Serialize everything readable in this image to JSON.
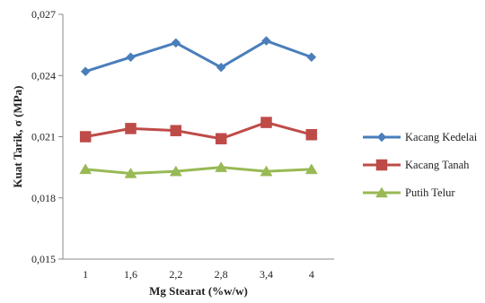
{
  "chart_data": {
    "type": "line",
    "xlabel": "Mg Stearat (%w/w)",
    "ylabel": "Kuat Tarik, σ (MPa)",
    "categories": [
      "1",
      "1,6",
      "2,2",
      "2,8",
      "3,4",
      "4"
    ],
    "ylim": [
      0.015,
      0.027
    ],
    "yticks": [
      "0,015",
      "0,018",
      "0,021",
      "0,024",
      "0,027"
    ],
    "ytick_values": [
      0.015,
      0.018,
      0.021,
      0.024,
      0.027
    ],
    "grid": false,
    "legend_position": "right",
    "series": [
      {
        "name": "Kacang Kedelai",
        "color": "#4a7ebb",
        "marker": "diamond",
        "values": [
          0.0242,
          0.0249,
          0.0256,
          0.0244,
          0.0257,
          0.0249
        ]
      },
      {
        "name": "Kacang Tanah",
        "color": "#be4b48",
        "marker": "square",
        "values": [
          0.021,
          0.0214,
          0.0213,
          0.0209,
          0.0217,
          0.0211
        ]
      },
      {
        "name": "Putih Telur",
        "color": "#98b954",
        "marker": "triangle",
        "values": [
          0.0194,
          0.0192,
          0.0193,
          0.0195,
          0.0193,
          0.0194
        ]
      }
    ]
  }
}
